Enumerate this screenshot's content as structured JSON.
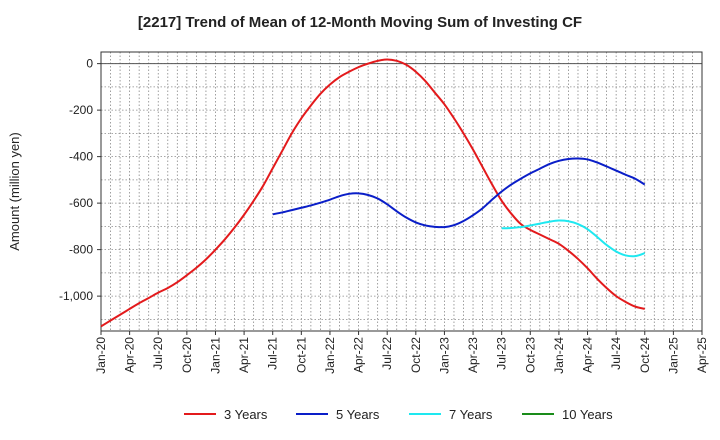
{
  "chart_data": {
    "type": "line",
    "title": "[2217]  Trend of Mean of 12-Month Moving Sum of Investing CF",
    "xlabel": "",
    "ylabel": "Amount (million yen)",
    "ylim": [
      -1150,
      50
    ],
    "y_ticks": [
      0,
      -200,
      -400,
      -600,
      -800,
      -1000
    ],
    "y_tick_labels": [
      "0",
      "-200",
      "-400",
      "-600",
      "-800",
      "-1,000"
    ],
    "x_tick_labels": [
      "Jan-20",
      "Apr-20",
      "Jul-20",
      "Oct-20",
      "Jan-21",
      "Apr-21",
      "Jul-21",
      "Oct-21",
      "Jan-22",
      "Apr-22",
      "Jul-22",
      "Oct-22",
      "Jan-23",
      "Apr-23",
      "Jul-23",
      "Oct-23",
      "Jan-24",
      "Apr-24",
      "Jul-24",
      "Oct-24",
      "Jan-25",
      "Apr-25"
    ],
    "grid": true,
    "legend_position": "bottom",
    "series": [
      {
        "name": "3 Years",
        "color": "#e31a1c",
        "points": [
          [
            "Jan-20",
            -1130
          ],
          [
            "Feb-20",
            -1105
          ],
          [
            "Mar-20",
            -1080
          ],
          [
            "Apr-20",
            -1055
          ],
          [
            "May-20",
            -1030
          ],
          [
            "Jun-20",
            -1008
          ],
          [
            "Jul-20",
            -985
          ],
          [
            "Aug-20",
            -965
          ],
          [
            "Sep-20",
            -940
          ],
          [
            "Oct-20",
            -910
          ],
          [
            "Nov-20",
            -878
          ],
          [
            "Dec-20",
            -842
          ],
          [
            "Jan-21",
            -800
          ],
          [
            "Feb-21",
            -755
          ],
          [
            "Mar-21",
            -705
          ],
          [
            "Apr-21",
            -650
          ],
          [
            "May-21",
            -590
          ],
          [
            "Jun-21",
            -525
          ],
          [
            "Jul-21",
            -450
          ],
          [
            "Aug-21",
            -375
          ],
          [
            "Sep-21",
            -300
          ],
          [
            "Oct-21",
            -235
          ],
          [
            "Nov-21",
            -180
          ],
          [
            "Dec-21",
            -130
          ],
          [
            "Jan-22",
            -90
          ],
          [
            "Feb-22",
            -58
          ],
          [
            "Mar-22",
            -35
          ],
          [
            "Apr-22",
            -15
          ],
          [
            "May-22",
            0
          ],
          [
            "Jun-22",
            12
          ],
          [
            "Jul-22",
            18
          ],
          [
            "Aug-22",
            12
          ],
          [
            "Sep-22",
            -5
          ],
          [
            "Oct-22",
            -35
          ],
          [
            "Nov-22",
            -75
          ],
          [
            "Dec-22",
            -125
          ],
          [
            "Jan-23",
            -175
          ],
          [
            "Feb-23",
            -235
          ],
          [
            "Mar-23",
            -300
          ],
          [
            "Apr-23",
            -370
          ],
          [
            "May-23",
            -445
          ],
          [
            "Jun-23",
            -520
          ],
          [
            "Jul-23",
            -590
          ],
          [
            "Aug-23",
            -645
          ],
          [
            "Sep-23",
            -690
          ],
          [
            "Oct-23",
            -715
          ],
          [
            "Nov-23",
            -735
          ],
          [
            "Dec-23",
            -755
          ],
          [
            "Jan-24",
            -775
          ],
          [
            "Feb-24",
            -805
          ],
          [
            "Mar-24",
            -840
          ],
          [
            "Apr-24",
            -880
          ],
          [
            "May-24",
            -925
          ],
          [
            "Jun-24",
            -965
          ],
          [
            "Jul-24",
            -1000
          ],
          [
            "Aug-24",
            -1025
          ],
          [
            "Sep-24",
            -1045
          ],
          [
            "Oct-24",
            -1055
          ]
        ]
      },
      {
        "name": "5 Years",
        "color": "#0a1ec8",
        "points": [
          [
            "Jul-21",
            -648
          ],
          [
            "Aug-21",
            -640
          ],
          [
            "Sep-21",
            -630
          ],
          [
            "Oct-21",
            -620
          ],
          [
            "Nov-21",
            -610
          ],
          [
            "Dec-21",
            -598
          ],
          [
            "Jan-22",
            -585
          ],
          [
            "Feb-22",
            -570
          ],
          [
            "Mar-22",
            -560
          ],
          [
            "Apr-22",
            -558
          ],
          [
            "May-22",
            -565
          ],
          [
            "Jun-22",
            -580
          ],
          [
            "Jul-22",
            -605
          ],
          [
            "Aug-22",
            -635
          ],
          [
            "Sep-22",
            -662
          ],
          [
            "Oct-22",
            -683
          ],
          [
            "Nov-22",
            -696
          ],
          [
            "Dec-22",
            -702
          ],
          [
            "Jan-23",
            -703
          ],
          [
            "Feb-23",
            -695
          ],
          [
            "Mar-23",
            -677
          ],
          [
            "Apr-23",
            -652
          ],
          [
            "May-23",
            -622
          ],
          [
            "Jun-23",
            -585
          ],
          [
            "Jul-23",
            -550
          ],
          [
            "Aug-23",
            -520
          ],
          [
            "Sep-23",
            -495
          ],
          [
            "Oct-23",
            -472
          ],
          [
            "Nov-23",
            -452
          ],
          [
            "Dec-23",
            -432
          ],
          [
            "Jan-24",
            -418
          ],
          [
            "Feb-24",
            -410
          ],
          [
            "Mar-24",
            -408
          ],
          [
            "Apr-24",
            -412
          ],
          [
            "May-24",
            -425
          ],
          [
            "Jun-24",
            -442
          ],
          [
            "Jul-24",
            -460
          ],
          [
            "Aug-24",
            -478
          ],
          [
            "Sep-24",
            -495
          ],
          [
            "Oct-24",
            -520
          ]
        ]
      },
      {
        "name": "7 Years",
        "color": "#1ee8f0",
        "points": [
          [
            "Jul-23",
            -708
          ],
          [
            "Aug-23",
            -707
          ],
          [
            "Sep-23",
            -703
          ],
          [
            "Oct-23",
            -696
          ],
          [
            "Nov-23",
            -688
          ],
          [
            "Dec-23",
            -680
          ],
          [
            "Jan-24",
            -675
          ],
          [
            "Feb-24",
            -678
          ],
          [
            "Mar-24",
            -690
          ],
          [
            "Apr-24",
            -712
          ],
          [
            "May-24",
            -745
          ],
          [
            "Jun-24",
            -780
          ],
          [
            "Jul-24",
            -808
          ],
          [
            "Aug-24",
            -825
          ],
          [
            "Sep-24",
            -828
          ],
          [
            "Oct-24",
            -815
          ]
        ]
      },
      {
        "name": "10 Years",
        "color": "#1a8c1a",
        "points": []
      }
    ]
  }
}
